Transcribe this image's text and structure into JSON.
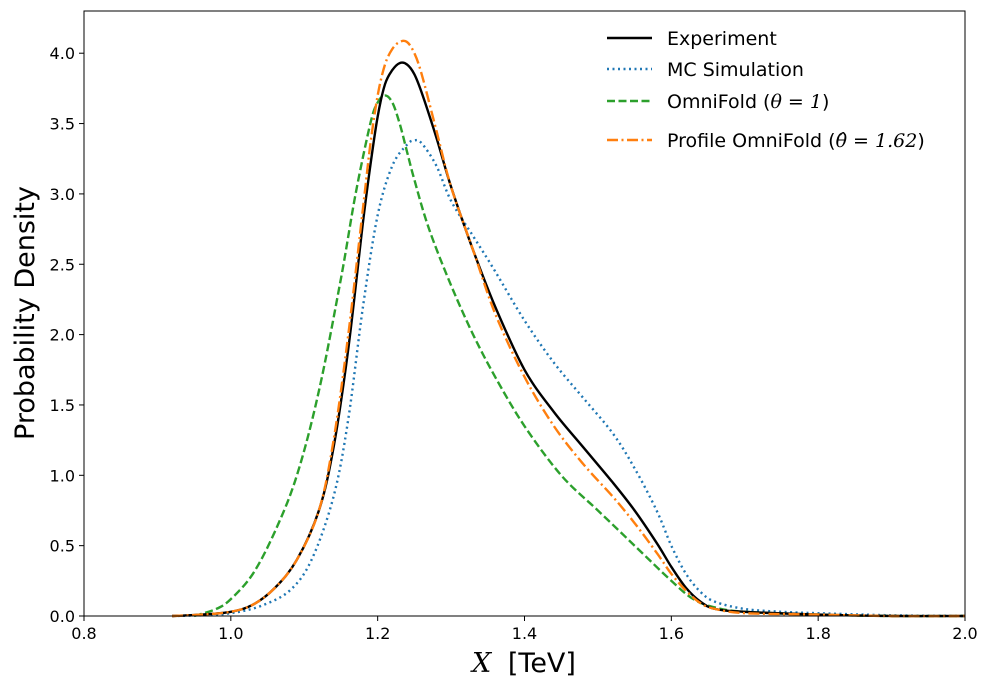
{
  "chart_data": {
    "type": "line",
    "title": "",
    "xlabel": "[TeV]",
    "xlabel_symbol": "X",
    "ylabel": "Probability Density",
    "xlim": [
      0.8,
      2.0
    ],
    "ylim": [
      0.0,
      4.3
    ],
    "xticks": [
      0.8,
      1.0,
      1.2,
      1.4,
      1.6,
      1.8,
      2.0
    ],
    "xtick_labels": [
      "0.8",
      "1.0",
      "1.2",
      "1.4",
      "1.6",
      "1.8",
      "2.0"
    ],
    "yticks": [
      0.0,
      0.5,
      1.0,
      1.5,
      2.0,
      2.5,
      3.0,
      3.5,
      4.0
    ],
    "ytick_labels": [
      "0.0",
      "0.5",
      "1.0",
      "1.5",
      "2.0",
      "2.5",
      "3.0",
      "3.5",
      "4.0"
    ],
    "grid": false,
    "legend_position": "top-right",
    "series": [
      {
        "name": "Experiment",
        "legend_prefix": "Experiment",
        "legend_math": "",
        "legend_suffix": "",
        "color": "#000000",
        "dash": "solid",
        "x": [
          0.92,
          0.96,
          1.0,
          1.03,
          1.06,
          1.09,
          1.12,
          1.14,
          1.16,
          1.18,
          1.19,
          1.2,
          1.21,
          1.22,
          1.23,
          1.24,
          1.25,
          1.26,
          1.28,
          1.3,
          1.33,
          1.36,
          1.4,
          1.44,
          1.48,
          1.52,
          1.55,
          1.58,
          1.6,
          1.62,
          1.64,
          1.66,
          1.7,
          1.8,
          1.9,
          2.0
        ],
        "y": [
          0.0,
          0.01,
          0.03,
          0.08,
          0.2,
          0.4,
          0.75,
          1.2,
          1.9,
          2.8,
          3.2,
          3.55,
          3.78,
          3.88,
          3.93,
          3.92,
          3.85,
          3.72,
          3.4,
          3.05,
          2.6,
          2.2,
          1.75,
          1.45,
          1.2,
          0.95,
          0.75,
          0.52,
          0.35,
          0.2,
          0.1,
          0.05,
          0.03,
          0.01,
          0.0,
          0.0
        ]
      },
      {
        "name": "MC Simulation",
        "legend_prefix": "MC Simulation",
        "legend_math": "",
        "legend_suffix": "",
        "color": "#1f77b4",
        "dash": "dotted",
        "x": [
          0.92,
          0.96,
          1.0,
          1.04,
          1.08,
          1.11,
          1.14,
          1.16,
          1.18,
          1.2,
          1.22,
          1.24,
          1.25,
          1.26,
          1.28,
          1.3,
          1.33,
          1.36,
          1.4,
          1.44,
          1.48,
          1.52,
          1.55,
          1.58,
          1.6,
          1.62,
          1.64,
          1.66,
          1.7,
          1.75,
          1.8,
          1.9,
          2.0
        ],
        "y": [
          0.0,
          0.005,
          0.02,
          0.07,
          0.18,
          0.4,
          0.85,
          1.4,
          2.2,
          2.85,
          3.2,
          3.35,
          3.38,
          3.36,
          3.2,
          2.95,
          2.7,
          2.45,
          2.1,
          1.8,
          1.55,
          1.3,
          1.05,
          0.75,
          0.5,
          0.3,
          0.17,
          0.1,
          0.05,
          0.03,
          0.02,
          0.005,
          0.0
        ]
      },
      {
        "name": "OmniFold (θ = 1)",
        "legend_prefix": "OmniFold (",
        "legend_math": "θ = 1",
        "legend_suffix": ")",
        "color": "#2ca02c",
        "dash": "dashed",
        "x": [
          0.95,
          0.98,
          1.0,
          1.03,
          1.06,
          1.09,
          1.12,
          1.15,
          1.17,
          1.19,
          1.2,
          1.21,
          1.22,
          1.23,
          1.24,
          1.25,
          1.27,
          1.3,
          1.33,
          1.36,
          1.4,
          1.45,
          1.5,
          1.55,
          1.6,
          1.63,
          1.66,
          1.7,
          1.8,
          1.9,
          2.0
        ],
        "y": [
          0.0,
          0.05,
          0.12,
          0.3,
          0.6,
          1.0,
          1.6,
          2.4,
          3.0,
          3.5,
          3.65,
          3.7,
          3.65,
          3.5,
          3.3,
          3.1,
          2.75,
          2.35,
          2.0,
          1.7,
          1.35,
          1.0,
          0.75,
          0.5,
          0.25,
          0.12,
          0.06,
          0.03,
          0.01,
          0.0,
          0.0
        ]
      },
      {
        "name": "Profile OmniFold (θ̂ = 1.62)",
        "legend_prefix": "Profile OmniFold (",
        "legend_math": "θ̂ = 1.62",
        "legend_suffix": ")",
        "color": "#ff7f0e",
        "dash": "dashdot",
        "x": [
          0.92,
          0.96,
          1.0,
          1.03,
          1.06,
          1.09,
          1.12,
          1.14,
          1.16,
          1.18,
          1.19,
          1.2,
          1.21,
          1.22,
          1.23,
          1.24,
          1.25,
          1.26,
          1.28,
          1.3,
          1.33,
          1.36,
          1.4,
          1.44,
          1.48,
          1.52,
          1.55,
          1.58,
          1.6,
          1.62,
          1.64,
          1.66,
          1.7,
          1.8,
          1.9,
          2.0
        ],
        "y": [
          0.0,
          0.01,
          0.03,
          0.08,
          0.2,
          0.4,
          0.75,
          1.25,
          2.0,
          2.9,
          3.35,
          3.7,
          3.92,
          4.03,
          4.08,
          4.08,
          4.0,
          3.85,
          3.45,
          3.05,
          2.6,
          2.15,
          1.7,
          1.35,
          1.08,
          0.85,
          0.66,
          0.45,
          0.3,
          0.18,
          0.09,
          0.05,
          0.02,
          0.01,
          0.0,
          0.0
        ]
      }
    ]
  }
}
